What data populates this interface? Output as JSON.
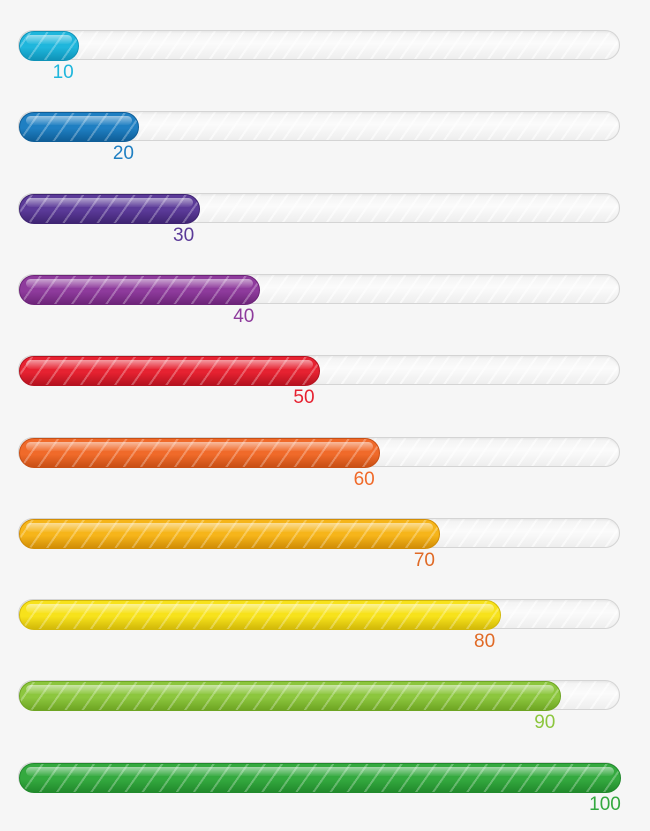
{
  "progress_bars": [
    {
      "label": "10",
      "value": 10,
      "color": "#1fb6dc",
      "dark": "#0f93b8"
    },
    {
      "label": "20",
      "value": 20,
      "color": "#1f7fc2",
      "dark": "#0f5e98"
    },
    {
      "label": "30",
      "value": 30,
      "color": "#5b3a98",
      "dark": "#3f2472"
    },
    {
      "label": "40",
      "value": 40,
      "color": "#8e3b9c",
      "dark": "#6d2479"
    },
    {
      "label": "50",
      "value": 50,
      "color": "#e62231",
      "dark": "#b5121f"
    },
    {
      "label": "60",
      "value": 60,
      "color": "#f06a2a",
      "dark": "#c84f15"
    },
    {
      "label": "70",
      "value": 70,
      "color": "#f6b51a",
      "dark": "#d18d06"
    },
    {
      "label": "80",
      "value": 80,
      "color": "#f7e21b",
      "dark": "#d2b909"
    },
    {
      "label": "90",
      "value": 90,
      "color": "#8cc63e",
      "dark": "#6ea523"
    },
    {
      "label": "100",
      "value": 100,
      "color": "#34a93f",
      "dark": "#218a2c"
    }
  ],
  "label_colors": [
    "#1fb6dc",
    "#1f7fc2",
    "#5b3a98",
    "#8e3b9c",
    "#e62231",
    "#f06a2a",
    "#e06a26",
    "#e06a26",
    "#8cc63e",
    "#34a93f"
  ]
}
